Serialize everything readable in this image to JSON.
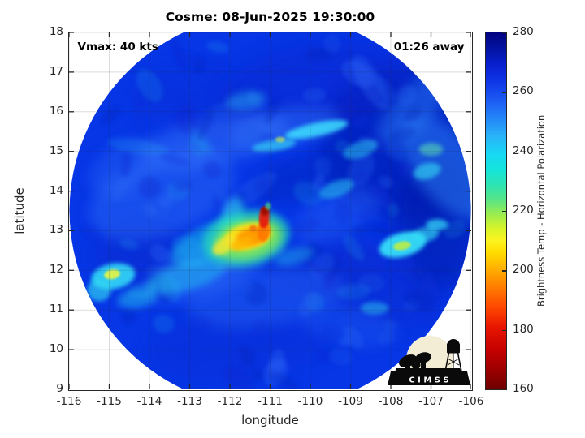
{
  "figure": {
    "logo": {
      "text": "C I M S S"
    }
  },
  "chart_data": {
    "type": "heatmap",
    "title": "Cosme: 08-Jun-2025 19:30:00",
    "storm": {
      "name": "Cosme",
      "datetime": "08-Jun-2025 19:30:00",
      "vmax_kts": 40,
      "time_away": "01:26"
    },
    "xlabel": "longitude",
    "ylabel": "latitude",
    "xlim": [
      -116,
      -106
    ],
    "ylim": [
      9,
      18
    ],
    "xticks": [
      -116,
      -115,
      -114,
      -113,
      -112,
      -111,
      -110,
      -109,
      -108,
      -107,
      -106
    ],
    "yticks": [
      9,
      10,
      11,
      12,
      13,
      14,
      15,
      16,
      17,
      18
    ],
    "grid": true,
    "grid_color": "rgba(38,38,38,0.16)",
    "axis_color": "#262626",
    "annotations": [
      {
        "text": "Vmax: 40 kts",
        "position": "top-left"
      },
      {
        "text": "01:26 away",
        "position": "top-right"
      }
    ],
    "colorbar": {
      "label": "Brightness Temp - Horizontal Polarization",
      "min": 160,
      "max": 280,
      "ticks": [
        160,
        180,
        200,
        220,
        240,
        260,
        280
      ],
      "gradient_stops": [
        {
          "value": 160,
          "color": "#6e0000"
        },
        {
          "value": 166,
          "color": "#980000"
        },
        {
          "value": 173,
          "color": "#c40000"
        },
        {
          "value": 181,
          "color": "#e81600"
        },
        {
          "value": 188,
          "color": "#ff4a00"
        },
        {
          "value": 195,
          "color": "#ff8200"
        },
        {
          "value": 201,
          "color": "#ffb400"
        },
        {
          "value": 206,
          "color": "#ffdc00"
        },
        {
          "value": 210,
          "color": "#fcf420"
        },
        {
          "value": 214,
          "color": "#d8f428"
        },
        {
          "value": 219,
          "color": "#98ec50"
        },
        {
          "value": 224,
          "color": "#55e488"
        },
        {
          "value": 229,
          "color": "#2ce4b4"
        },
        {
          "value": 234,
          "color": "#14e4dc"
        },
        {
          "value": 239,
          "color": "#18d8f4"
        },
        {
          "value": 245,
          "color": "#28b4f8"
        },
        {
          "value": 251,
          "color": "#2488f8"
        },
        {
          "value": 257,
          "color": "#1c5cf4"
        },
        {
          "value": 263,
          "color": "#1038e8"
        },
        {
          "value": 269,
          "color": "#0820d0"
        },
        {
          "value": 275,
          "color": "#0312a0"
        },
        {
          "value": 280,
          "color": "#020280"
        }
      ]
    },
    "swath": {
      "center_lon": -111,
      "center_lat": 13.5,
      "radius_deg": 5,
      "base_color": "#0636e6"
    },
    "features_base": [
      {
        "lon": -107.5,
        "lat": 15.2,
        "rx": 2.3,
        "ry": 1.9,
        "rot": 0,
        "c": "#0018aa",
        "o": 0.55,
        "b": "b5"
      },
      {
        "lon": -106.8,
        "lat": 13.2,
        "rx": 1.1,
        "ry": 1.7,
        "rot": 0,
        "c": "#0016a0",
        "o": 0.5,
        "b": "b5"
      },
      {
        "lon": -109.9,
        "lat": 16.6,
        "rx": 2.4,
        "ry": 1.1,
        "rot": -10,
        "c": "#0724c8",
        "o": 0.4,
        "b": "b5"
      },
      {
        "lon": -108.3,
        "lat": 11.6,
        "rx": 1.6,
        "ry": 1.0,
        "rot": 20,
        "c": "#0a28c8",
        "o": 0.35,
        "b": "b5"
      },
      {
        "lon": -112.9,
        "lat": 16.2,
        "rx": 1.6,
        "ry": 0.8,
        "rot": 15,
        "c": "#0a2cd0",
        "o": 0.3,
        "b": "b5"
      },
      {
        "lon": -114.2,
        "lat": 12.4,
        "rx": 1.2,
        "ry": 0.8,
        "rot": 0,
        "c": "#0722c0",
        "o": 0.35,
        "b": "b5"
      },
      {
        "lon": -111.8,
        "lat": 10.1,
        "rx": 2.2,
        "ry": 0.9,
        "rot": -5,
        "c": "#0a2ad0",
        "o": 0.35,
        "b": "b5"
      },
      {
        "lon": -110.25,
        "lat": 14.3,
        "rx": 1.3,
        "ry": 0.55,
        "rot": -15,
        "c": "#0520b8",
        "o": 0.4,
        "b": "b4"
      },
      {
        "lon": -109.6,
        "lat": 12.1,
        "rx": 1.5,
        "ry": 0.8,
        "rot": -10,
        "c": "#0828cc",
        "o": 0.3,
        "b": "b5"
      },
      {
        "lon": -113.7,
        "lat": 13.9,
        "rx": 1.9,
        "ry": 1.0,
        "rot": -20,
        "c": "#2e6ef8",
        "o": 0.45,
        "b": "b4"
      },
      {
        "lon": -112.4,
        "lat": 15.25,
        "rx": 1.9,
        "ry": 0.6,
        "rot": -12,
        "c": "#3a78fa",
        "o": 0.45,
        "b": "b4"
      },
      {
        "lon": -114.6,
        "lat": 14.6,
        "rx": 1.0,
        "ry": 0.6,
        "rot": -30,
        "c": "#2e6ef8",
        "o": 0.35,
        "b": "b4"
      },
      {
        "lon": -111.1,
        "lat": 11.3,
        "rx": 2.0,
        "ry": 0.7,
        "rot": -8,
        "c": "#2a68f5",
        "o": 0.4,
        "b": "b4"
      },
      {
        "lon": -109.3,
        "lat": 13.4,
        "rx": 1.2,
        "ry": 0.55,
        "rot": -25,
        "c": "#2e6cf8",
        "o": 0.35,
        "b": "b4"
      },
      {
        "lon": -112.6,
        "lat": 12.0,
        "rx": 1.6,
        "ry": 0.6,
        "rot": -20,
        "c": "#3578fa",
        "o": 0.45,
        "b": "b4"
      },
      {
        "lon": -110.6,
        "lat": 15.6,
        "rx": 1.4,
        "ry": 0.5,
        "rot": -10,
        "c": "#3578fa",
        "o": 0.4,
        "b": "b4"
      },
      {
        "lon": -109.0,
        "lat": 10.6,
        "rx": 1.2,
        "ry": 0.5,
        "rot": 10,
        "c": "#2a68f5",
        "o": 0.3,
        "b": "b4"
      },
      {
        "lon": -106.6,
        "lat": 14.6,
        "rx": 0.8,
        "ry": 1.6,
        "rot": -40,
        "c": "#2f86f8",
        "o": 0.5,
        "b": "b4"
      },
      {
        "lon": -107.4,
        "lat": 16.1,
        "rx": 1.3,
        "ry": 0.5,
        "rot": -45,
        "c": "#2f80f6",
        "o": 0.45,
        "b": "b4"
      }
    ],
    "features_detail": [
      {
        "lon": -112.5,
        "lat": 12.7,
        "rx": 1.05,
        "ry": 0.45,
        "rot": -25,
        "c": "#1fc8ee",
        "o": 0.5,
        "b": "b3"
      },
      {
        "lon": -113.1,
        "lat": 11.85,
        "rx": 1.0,
        "ry": 0.35,
        "rot": -15,
        "c": "#28d2f0",
        "o": 0.45,
        "b": "b3"
      },
      {
        "lon": -111.95,
        "lat": 13.3,
        "rx": 0.28,
        "ry": 0.55,
        "rot": 15,
        "c": "#30dcf2",
        "o": 0.55,
        "b": "b3"
      },
      {
        "lon": -114.9,
        "lat": 11.85,
        "rx": 0.55,
        "ry": 0.32,
        "rot": -10,
        "c": "#35e2f8",
        "o": 0.85,
        "b": "b2"
      },
      {
        "lon": -115.25,
        "lat": 11.5,
        "rx": 0.3,
        "ry": 0.28,
        "rot": 0,
        "c": "#30d8f0",
        "o": 0.65,
        "b": "b2"
      },
      {
        "lon": -107.7,
        "lat": 12.65,
        "rx": 0.6,
        "ry": 0.3,
        "rot": -15,
        "c": "#38e6fa",
        "o": 0.9,
        "b": "b2"
      },
      {
        "lon": -107.15,
        "lat": 12.9,
        "rx": 0.35,
        "ry": 0.18,
        "rot": -10,
        "c": "#34dcf4",
        "o": 0.65,
        "b": "b2"
      },
      {
        "lon": -106.85,
        "lat": 13.15,
        "rx": 0.28,
        "ry": 0.14,
        "rot": 0,
        "c": "#38e2f8",
        "o": 0.7,
        "b": "b2"
      },
      {
        "lon": -109.85,
        "lat": 15.55,
        "rx": 0.8,
        "ry": 0.17,
        "rot": -12,
        "c": "#40e8ff",
        "o": 0.8,
        "b": "b2"
      },
      {
        "lon": -110.9,
        "lat": 15.15,
        "rx": 0.55,
        "ry": 0.14,
        "rot": -8,
        "c": "#38dcf6",
        "o": 0.65,
        "b": "b2"
      },
      {
        "lon": -108.75,
        "lat": 15.05,
        "rx": 0.45,
        "ry": 0.2,
        "rot": -20,
        "c": "#2fd0f0",
        "o": 0.5,
        "b": "b2"
      },
      {
        "lon": -107.1,
        "lat": 14.5,
        "rx": 0.35,
        "ry": 0.2,
        "rot": -15,
        "c": "#35dcf4",
        "o": 0.6,
        "b": "b2"
      },
      {
        "lon": -107.0,
        "lat": 15.05,
        "rx": 0.3,
        "ry": 0.16,
        "rot": 0,
        "c": "#60e8b0",
        "o": 0.55,
        "b": "b2"
      },
      {
        "lon": -108.4,
        "lat": 11.05,
        "rx": 0.35,
        "ry": 0.16,
        "rot": 0,
        "c": "#30d4f0",
        "o": 0.45,
        "b": "b2"
      },
      {
        "lon": -110.4,
        "lat": 12.35,
        "rx": 0.5,
        "ry": 0.2,
        "rot": -15,
        "c": "#28ccf0",
        "o": 0.4,
        "b": "b3"
      },
      {
        "lon": -114.3,
        "lat": 11.3,
        "rx": 0.5,
        "ry": 0.25,
        "rot": -10,
        "c": "#2ad0ee",
        "o": 0.45,
        "b": "b3"
      },
      {
        "lon": -109.35,
        "lat": 14.05,
        "rx": 0.45,
        "ry": 0.2,
        "rot": -20,
        "c": "#2fd4f0",
        "o": 0.5,
        "b": "b2"
      },
      {
        "lon": -111.6,
        "lat": 16.3,
        "rx": 0.5,
        "ry": 0.22,
        "rot": -10,
        "c": "#2bb4ee",
        "o": 0.4,
        "b": "b3"
      },
      {
        "lon": -114.93,
        "lat": 11.9,
        "rx": 0.2,
        "ry": 0.12,
        "rot": -10,
        "c": "#e8f542",
        "o": 0.9,
        "b": "b1"
      },
      {
        "lon": -107.72,
        "lat": 12.62,
        "rx": 0.22,
        "ry": 0.11,
        "rot": -10,
        "c": "#c2ee3e",
        "o": 0.85,
        "b": "b1"
      },
      {
        "lon": -110.75,
        "lat": 15.3,
        "rx": 0.12,
        "ry": 0.07,
        "rot": 0,
        "c": "#d8f040",
        "o": 0.6,
        "b": "b1"
      },
      {
        "lon": -111.6,
        "lat": 12.8,
        "rx": 1.1,
        "ry": 0.7,
        "rot": -12,
        "c": "#28e0b8",
        "o": 0.7,
        "b": "b3"
      },
      {
        "lon": -111.55,
        "lat": 12.78,
        "rx": 0.85,
        "ry": 0.5,
        "rot": -12,
        "c": "#8ef04a",
        "o": 0.75,
        "b": "b3"
      },
      {
        "lon": -111.55,
        "lat": 12.85,
        "rx": 0.6,
        "ry": 0.33,
        "rot": -12,
        "c": "#ffe012",
        "o": 0.95,
        "b": "b2"
      },
      {
        "lon": -112.15,
        "lat": 12.62,
        "rx": 0.32,
        "ry": 0.18,
        "rot": -35,
        "c": "#f2e630",
        "o": 0.85,
        "b": "b2"
      },
      {
        "lon": -111.45,
        "lat": 12.85,
        "rx": 0.38,
        "ry": 0.22,
        "rot": -8,
        "c": "#ff9800",
        "o": 0.95,
        "b": "b2"
      },
      {
        "lon": -111.7,
        "lat": 12.68,
        "rx": 0.3,
        "ry": 0.15,
        "rot": -20,
        "c": "#ffb400",
        "o": 0.8,
        "b": "b2"
      },
      {
        "lon": -111.16,
        "lat": 13.0,
        "rx": 0.16,
        "ry": 0.28,
        "rot": 5,
        "c": "#ff7800",
        "o": 0.9,
        "b": "b1"
      },
      {
        "lon": -111.15,
        "lat": 13.33,
        "rx": 0.13,
        "ry": 0.27,
        "rot": 3,
        "c": "#e31e10",
        "o": 0.95,
        "b": "b1"
      },
      {
        "lon": -111.13,
        "lat": 13.5,
        "rx": 0.1,
        "ry": 0.11,
        "rot": 0,
        "c": "#9a0a06",
        "o": 0.95,
        "b": "b1"
      },
      {
        "lon": -111.42,
        "lat": 13.06,
        "rx": 0.09,
        "ry": 0.08,
        "rot": 0,
        "c": "#f07010",
        "o": 0.85,
        "b": "b1"
      },
      {
        "lon": -111.05,
        "lat": 13.62,
        "rx": 0.07,
        "ry": 0.1,
        "rot": 0,
        "c": "#50e080",
        "o": 0.65,
        "b": "b1"
      }
    ]
  }
}
